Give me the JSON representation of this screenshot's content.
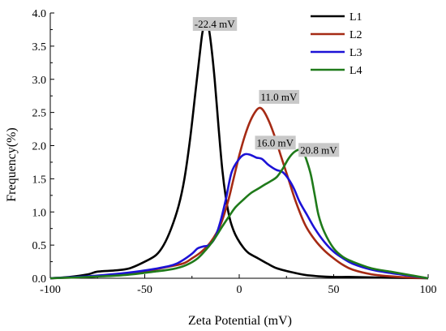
{
  "chart_data": {
    "type": "line",
    "xlabel": "Zeta Potential (mV)",
    "ylabel": "Frequency(%)",
    "xlim": [
      -100,
      100
    ],
    "ylim": [
      0,
      4.0
    ],
    "x_ticks": [
      "-100",
      "-50",
      "0",
      "50",
      "100"
    ],
    "y_ticks": [
      "0.0",
      "0.5",
      "1.0",
      "1.5",
      "2.0",
      "2.5",
      "3.0",
      "3.5",
      "4.0"
    ],
    "legend_position": "top-right",
    "series": [
      {
        "name": "L1",
        "color": "#000000",
        "points": [
          [
            -100,
            0
          ],
          [
            -90,
            0.02
          ],
          [
            -80,
            0.06
          ],
          [
            -75,
            0.1
          ],
          [
            -65,
            0.12
          ],
          [
            -58,
            0.15
          ],
          [
            -50,
            0.25
          ],
          [
            -44,
            0.35
          ],
          [
            -40,
            0.5
          ],
          [
            -36,
            0.75
          ],
          [
            -32,
            1.1
          ],
          [
            -29,
            1.5
          ],
          [
            -26,
            2.1
          ],
          [
            -23,
            2.85
          ],
          [
            -21,
            3.35
          ],
          [
            -19.5,
            3.7
          ],
          [
            -18,
            3.85
          ],
          [
            -16.5,
            3.82
          ],
          [
            -15,
            3.55
          ],
          [
            -13,
            3.0
          ],
          [
            -11,
            2.3
          ],
          [
            -9,
            1.65
          ],
          [
            -7,
            1.2
          ],
          [
            -5,
            0.9
          ],
          [
            -3,
            0.72
          ],
          [
            -1,
            0.6
          ],
          [
            2,
            0.47
          ],
          [
            5,
            0.38
          ],
          [
            10,
            0.3
          ],
          [
            15,
            0.22
          ],
          [
            20,
            0.15
          ],
          [
            28,
            0.09
          ],
          [
            35,
            0.05
          ],
          [
            42,
            0.03
          ],
          [
            50,
            0.02
          ],
          [
            60,
            0.02
          ],
          [
            75,
            0.01
          ],
          [
            100,
            0
          ]
        ]
      },
      {
        "name": "L2",
        "color": "#a52a14",
        "points": [
          [
            -100,
            0
          ],
          [
            -80,
            0.02
          ],
          [
            -60,
            0.06
          ],
          [
            -50,
            0.1
          ],
          [
            -40,
            0.16
          ],
          [
            -30,
            0.22
          ],
          [
            -25,
            0.3
          ],
          [
            -20,
            0.4
          ],
          [
            -15,
            0.55
          ],
          [
            -10,
            0.8
          ],
          [
            -6,
            1.15
          ],
          [
            -3,
            1.5
          ],
          [
            0,
            1.85
          ],
          [
            3,
            2.15
          ],
          [
            6,
            2.38
          ],
          [
            9,
            2.53
          ],
          [
            11,
            2.57
          ],
          [
            13,
            2.52
          ],
          [
            16,
            2.35
          ],
          [
            19,
            2.12
          ],
          [
            22,
            1.85
          ],
          [
            26,
            1.5
          ],
          [
            30,
            1.15
          ],
          [
            35,
            0.8
          ],
          [
            40,
            0.58
          ],
          [
            45,
            0.42
          ],
          [
            50,
            0.3
          ],
          [
            55,
            0.2
          ],
          [
            60,
            0.13
          ],
          [
            70,
            0.06
          ],
          [
            80,
            0.03
          ],
          [
            90,
            0.01
          ],
          [
            100,
            0
          ]
        ]
      },
      {
        "name": "L3",
        "color": "#1c12d6",
        "points": [
          [
            -100,
            0
          ],
          [
            -80,
            0.03
          ],
          [
            -60,
            0.08
          ],
          [
            -45,
            0.14
          ],
          [
            -35,
            0.2
          ],
          [
            -30,
            0.27
          ],
          [
            -25,
            0.37
          ],
          [
            -22,
            0.45
          ],
          [
            -19,
            0.48
          ],
          [
            -16,
            0.5
          ],
          [
            -13,
            0.6
          ],
          [
            -10,
            0.85
          ],
          [
            -7,
            1.2
          ],
          [
            -4,
            1.6
          ],
          [
            0,
            1.8
          ],
          [
            3,
            1.87
          ],
          [
            6,
            1.86
          ],
          [
            9,
            1.82
          ],
          [
            12,
            1.8
          ],
          [
            15,
            1.72
          ],
          [
            18,
            1.66
          ],
          [
            20,
            1.63
          ],
          [
            23,
            1.6
          ],
          [
            26,
            1.5
          ],
          [
            29,
            1.35
          ],
          [
            32,
            1.15
          ],
          [
            36,
            0.95
          ],
          [
            40,
            0.75
          ],
          [
            45,
            0.55
          ],
          [
            50,
            0.4
          ],
          [
            55,
            0.3
          ],
          [
            60,
            0.22
          ],
          [
            70,
            0.13
          ],
          [
            80,
            0.08
          ],
          [
            90,
            0.04
          ],
          [
            100,
            0
          ]
        ]
      },
      {
        "name": "L4",
        "color": "#1f7a1a",
        "points": [
          [
            -100,
            0
          ],
          [
            -80,
            0.02
          ],
          [
            -60,
            0.05
          ],
          [
            -45,
            0.1
          ],
          [
            -35,
            0.14
          ],
          [
            -28,
            0.2
          ],
          [
            -22,
            0.3
          ],
          [
            -17,
            0.45
          ],
          [
            -13,
            0.6
          ],
          [
            -9,
            0.78
          ],
          [
            -5,
            0.95
          ],
          [
            -2,
            1.07
          ],
          [
            2,
            1.18
          ],
          [
            6,
            1.28
          ],
          [
            10,
            1.35
          ],
          [
            14,
            1.42
          ],
          [
            17,
            1.47
          ],
          [
            20,
            1.53
          ],
          [
            23,
            1.65
          ],
          [
            26,
            1.8
          ],
          [
            29,
            1.9
          ],
          [
            32,
            1.94
          ],
          [
            34,
            1.9
          ],
          [
            36,
            1.75
          ],
          [
            38,
            1.55
          ],
          [
            40,
            1.25
          ],
          [
            42,
            0.95
          ],
          [
            45,
            0.7
          ],
          [
            50,
            0.45
          ],
          [
            55,
            0.32
          ],
          [
            60,
            0.25
          ],
          [
            70,
            0.15
          ],
          [
            80,
            0.1
          ],
          [
            90,
            0.05
          ],
          [
            100,
            0
          ]
        ]
      }
    ],
    "annotations": [
      {
        "text": "-22.4 mV",
        "x": -13,
        "y": 3.78
      },
      {
        "text": "11.0 mV",
        "x": 21,
        "y": 2.68
      },
      {
        "text": "16.0 mV",
        "x": 19,
        "y": 1.99
      },
      {
        "text": "20.8 mV",
        "x": 42,
        "y": 1.88
      }
    ]
  }
}
